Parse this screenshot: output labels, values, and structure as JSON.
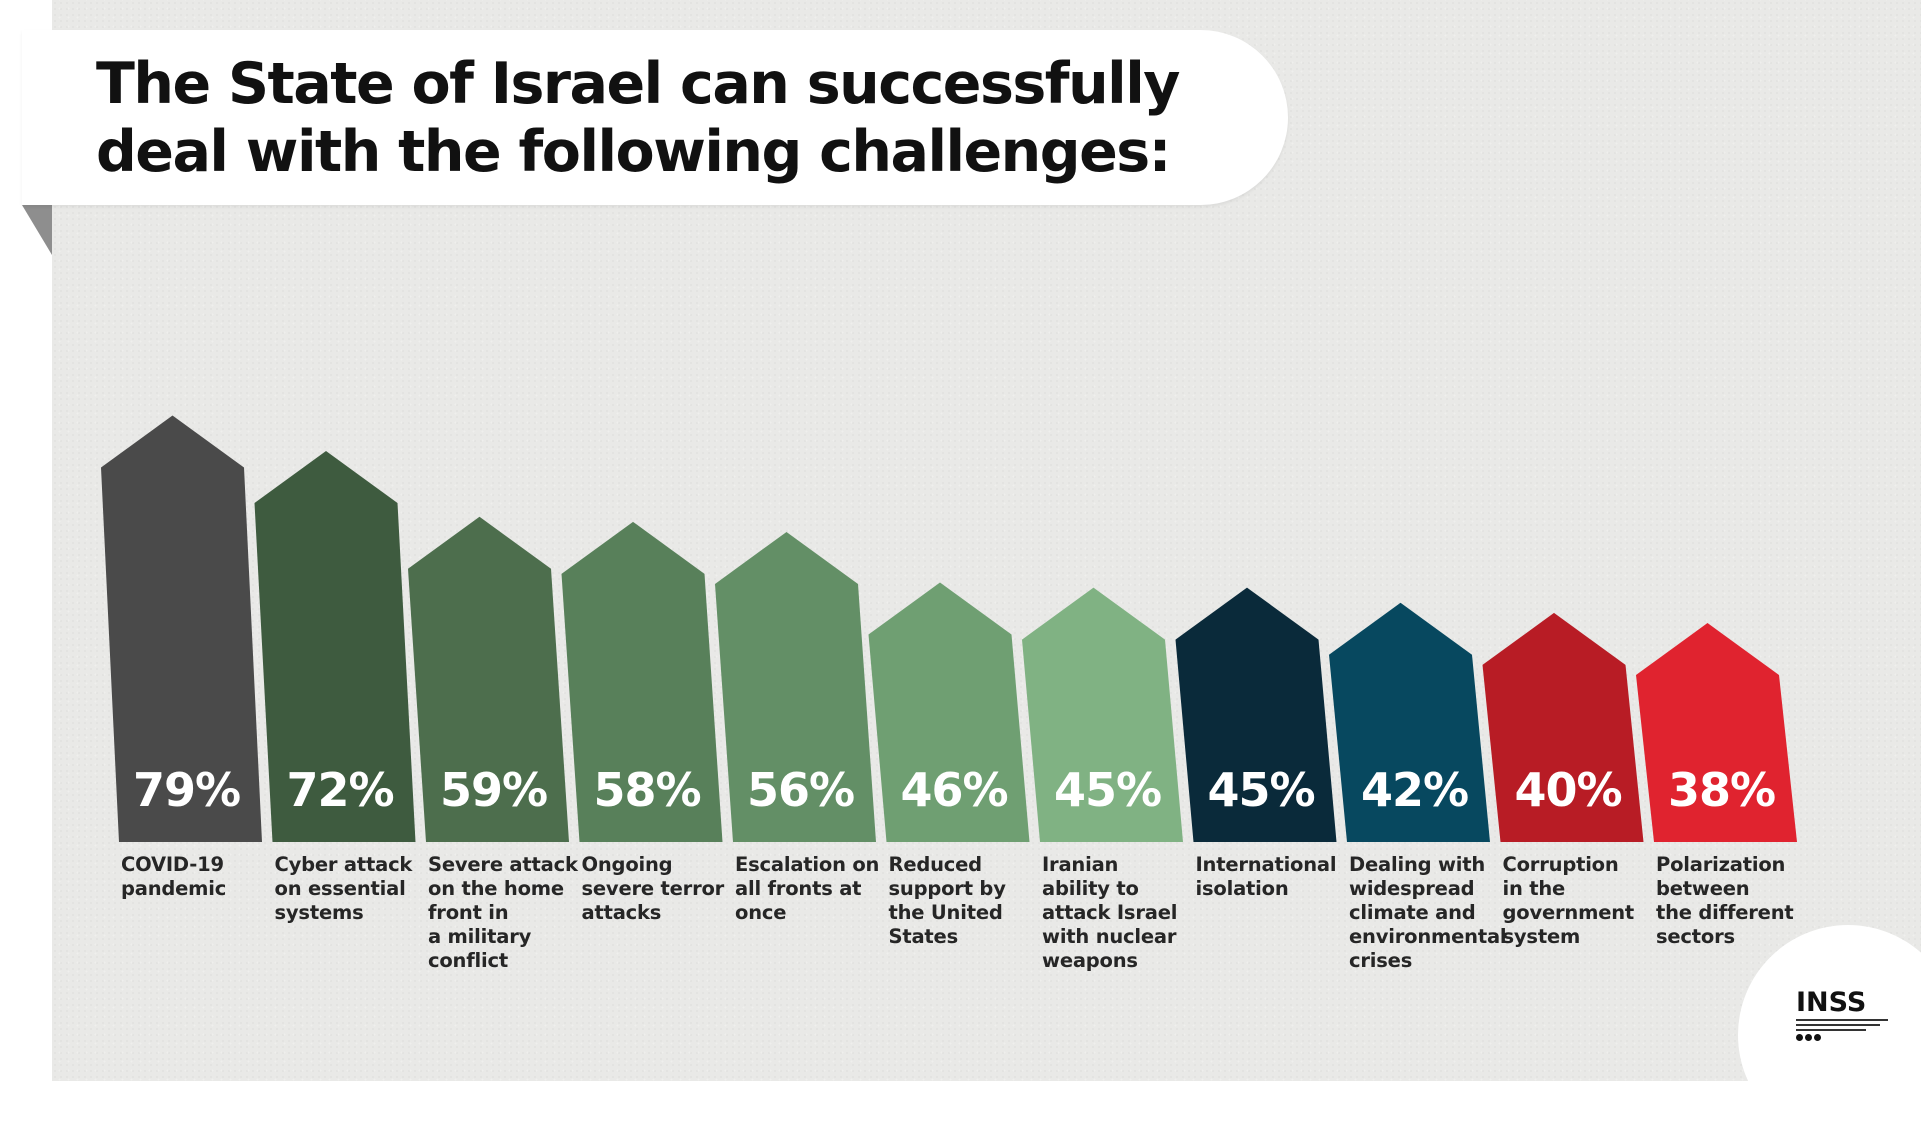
{
  "title": "The State of Israel can successfully deal with the following challenges:",
  "logo": {
    "text": "INSS"
  },
  "chart_data": {
    "type": "bar",
    "title": "The State of Israel can successfully deal with the following challenges:",
    "categories": [
      "COVID-19 pandemic",
      "Cyber attack on essential systems",
      "Severe attack on the home front in a military conflict",
      "Ongoing severe terror attacks",
      "Escalation on all fronts at once",
      "Reduced support by the United States",
      "Iranian ability to attack Israel with nuclear weapons",
      "International isolation",
      "Dealing with widespread climate and environmental crises",
      "Corruption in the government system",
      "Polarization between the different sectors"
    ],
    "category_lines": [
      [
        "COVID-19",
        "pandemic"
      ],
      [
        "Cyber attack",
        "on essential",
        "systems"
      ],
      [
        "Severe attack",
        "on the home",
        "front in",
        "a military",
        "conflict"
      ],
      [
        "Ongoing",
        "severe terror",
        "attacks"
      ],
      [
        "Escalation on",
        "all fronts at",
        "once"
      ],
      [
        "Reduced",
        "support by",
        "the United",
        "States"
      ],
      [
        "Iranian",
        "ability to",
        "attack Israel",
        "with nuclear",
        "weapons"
      ],
      [
        "International",
        "isolation"
      ],
      [
        "Dealing with",
        "widespread",
        "climate and",
        "environmental",
        "crises"
      ],
      [
        "Corruption",
        "in the",
        "government",
        "system"
      ],
      [
        "Polarization",
        "between",
        "the different",
        "sectors"
      ]
    ],
    "values": [
      79,
      72,
      59,
      58,
      56,
      46,
      45,
      45,
      42,
      40,
      38
    ],
    "value_labels": [
      "79%",
      "72%",
      "59%",
      "58%",
      "56%",
      "46%",
      "45%",
      "45%",
      "42%",
      "40%",
      "38%"
    ],
    "colors": [
      "#4a4a4a",
      "#3e5b3f",
      "#4d6e4d",
      "#58805a",
      "#638f66",
      "#6f9f72",
      "#80b283",
      "#0a2a3a",
      "#07485f",
      "#b81c25",
      "#e0232f"
    ],
    "value_label_color": "#ffffff",
    "ylim": [
      0,
      100
    ],
    "grid": false,
    "legend": "none"
  }
}
